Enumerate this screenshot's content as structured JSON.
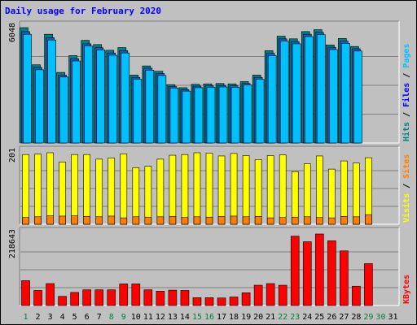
{
  "chart_data": {
    "title": "Daily usage for February 2020",
    "type": "bar",
    "x_labels": [
      {
        "text": "1",
        "color": "#008040"
      },
      {
        "text": "2",
        "color": "#000000"
      },
      {
        "text": "3",
        "color": "#000000"
      },
      {
        "text": "4",
        "color": "#000000"
      },
      {
        "text": "5",
        "color": "#000000"
      },
      {
        "text": "6",
        "color": "#000000"
      },
      {
        "text": "7",
        "color": "#000000"
      },
      {
        "text": "8",
        "color": "#008040"
      },
      {
        "text": "9",
        "color": "#008040"
      },
      {
        "text": "10",
        "color": "#000000"
      },
      {
        "text": "11",
        "color": "#000000"
      },
      {
        "text": "12",
        "color": "#000000"
      },
      {
        "text": "13",
        "color": "#000000"
      },
      {
        "text": "14",
        "color": "#000000"
      },
      {
        "text": "15",
        "color": "#008040"
      },
      {
        "text": "16",
        "color": "#008040"
      },
      {
        "text": "17",
        "color": "#000000"
      },
      {
        "text": "18",
        "color": "#000000"
      },
      {
        "text": "19",
        "color": "#000000"
      },
      {
        "text": "20",
        "color": "#000000"
      },
      {
        "text": "21",
        "color": "#000000"
      },
      {
        "text": "22",
        "color": "#008040"
      },
      {
        "text": "23",
        "color": "#008040"
      },
      {
        "text": "24",
        "color": "#000000"
      },
      {
        "text": "25",
        "color": "#000000"
      },
      {
        "text": "26",
        "color": "#000000"
      },
      {
        "text": "27",
        "color": "#000000"
      },
      {
        "text": "28",
        "color": "#000000"
      },
      {
        "text": "29",
        "color": "#008040"
      },
      {
        "text": "30",
        "color": "#008040"
      },
      {
        "text": "31",
        "color": "#000000"
      }
    ],
    "panels": [
      {
        "id": "top",
        "max_label": "6048",
        "max_value": 6048,
        "legend": [
          {
            "text": "Hits",
            "color": "#008080"
          },
          {
            "text": " / ",
            "color": "#000000"
          },
          {
            "text": "Files",
            "color": "#0000ff"
          },
          {
            "text": " / ",
            "color": "#000000"
          },
          {
            "text": "Pages",
            "color": "#00c0ff"
          }
        ],
        "series": [
          {
            "name": "Hits",
            "color": "#008080",
            "values": [
              6048,
              4100,
              5700,
              3700,
              4580,
              5380,
              5160,
              4860,
              5000,
              3560,
              4040,
              3760,
              3060,
              2900,
              3080,
              3100,
              3120,
              3100,
              3220,
              3560,
              4840,
              5600,
              5460,
              5840,
              5940,
              5140,
              5480,
              5060,
              null,
              null,
              null
            ]
          },
          {
            "name": "Files",
            "color": "#0066cc",
            "values": [
              5840,
              3960,
              5520,
              3560,
              4420,
              5200,
              5000,
              4720,
              4840,
              3440,
              3920,
              3640,
              2960,
              2800,
              2980,
              3000,
              3020,
              3000,
              3120,
              3440,
              4700,
              5460,
              5320,
              5700,
              5800,
              5020,
              5340,
              4940,
              null,
              null,
              null
            ]
          },
          {
            "name": "Pages",
            "color": "#00c0ff",
            "values": [
              5700,
              3840,
              5400,
              3460,
              4300,
              5080,
              4880,
              4600,
              4720,
              3340,
              3820,
              3540,
              2880,
              2720,
              2900,
              2920,
              2940,
              2920,
              3040,
              3340,
              4580,
              5340,
              5200,
              5580,
              5680,
              4900,
              5220,
              4820,
              null,
              null,
              null
            ]
          }
        ]
      },
      {
        "id": "middle",
        "max_label": "201",
        "max_value": 201,
        "legend": [
          {
            "text": "Visits",
            "color": "#ffff00"
          },
          {
            "text": " / ",
            "color": "#000000"
          },
          {
            "text": "Sites",
            "color": "#ff8000"
          }
        ],
        "series": [
          {
            "name": "Visits",
            "color": "#ffff00",
            "values": [
              196,
              197,
              201,
              175,
              196,
              196,
              183,
              186,
              198,
              159,
              163,
              183,
              194,
              196,
              201,
              200,
              192,
              199,
              193,
              182,
              193,
              195,
              148,
              170,
              192,
              155,
              178,
              172,
              187,
              null,
              null
            ]
          },
          {
            "name": "Sites",
            "color": "#ff8000",
            "values": [
              19,
              21,
              24,
              23,
              24,
              22,
              21,
              23,
              18,
              21,
              20,
              21,
              22,
              19,
              21,
              20,
              22,
              23,
              21,
              22,
              18,
              19,
              20,
              21,
              19,
              18,
              22,
              21,
              27,
              null,
              null
            ]
          }
        ]
      },
      {
        "id": "bottom",
        "max_label": "218643",
        "max_value": 218643,
        "legend": [
          {
            "text": "KBytes",
            "color": "#ff0000"
          }
        ],
        "series": [
          {
            "name": "KBytes",
            "color": "#ff0000",
            "values": [
              76000,
              46000,
              67000,
              28000,
              40000,
              48000,
              48000,
              48000,
              66000,
              66000,
              48000,
              44000,
              47000,
              46000,
              24000,
              24000,
              23000,
              26000,
              39000,
              62000,
              67000,
              62000,
              212000,
              195000,
              218643,
              198000,
              167000,
              59000,
              128000,
              null,
              null
            ]
          }
        ]
      }
    ]
  }
}
